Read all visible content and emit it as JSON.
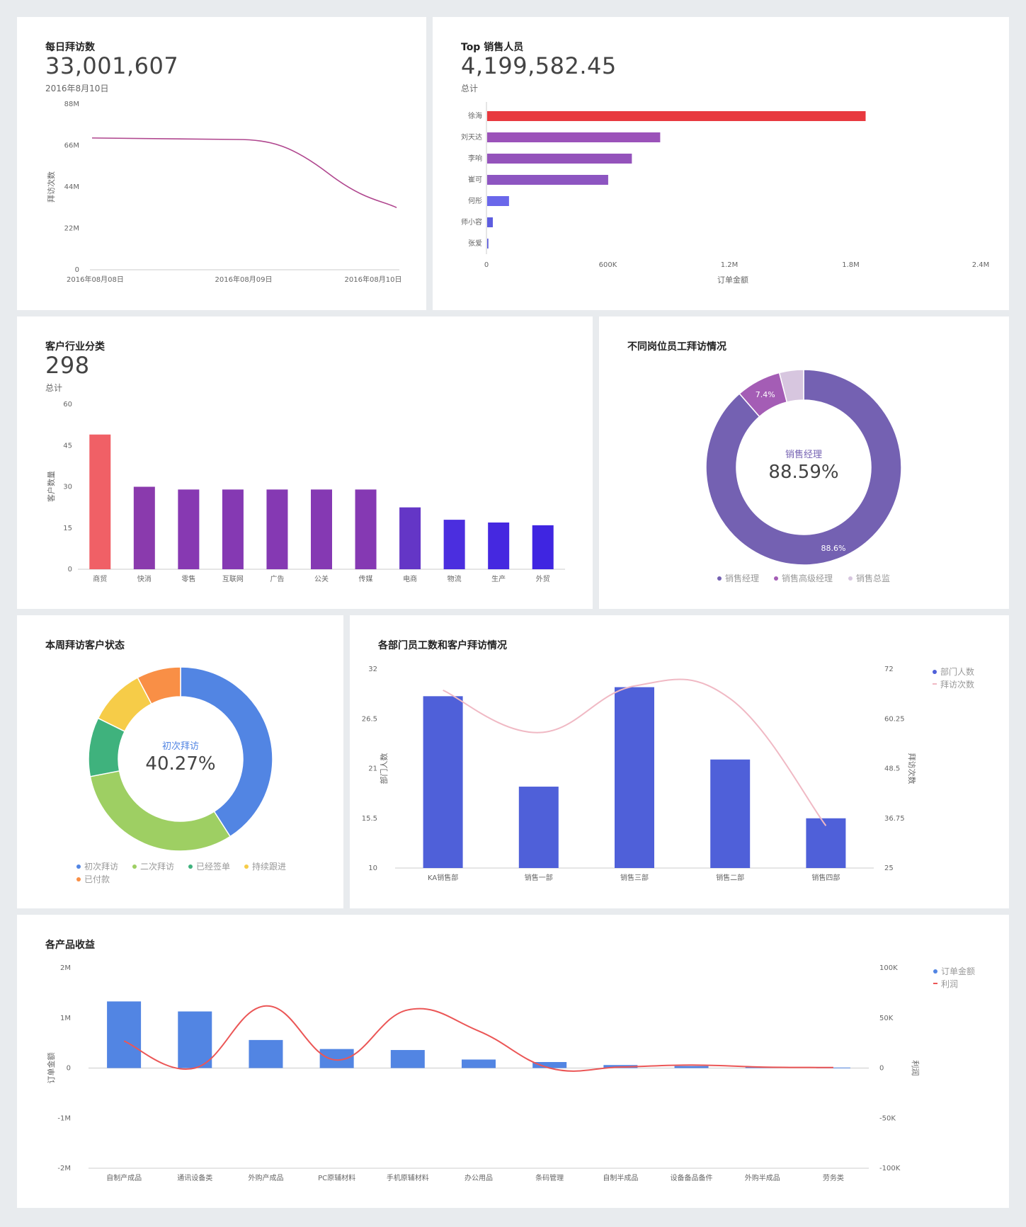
{
  "colors": {
    "page_bg": "#e8ebee",
    "card_bg": "#ffffff",
    "line_visits": "#b0478f",
    "bar_top": "#e8393f",
    "bar_purple": "#9b52b9",
    "bar_blue_purple": "#6a67ea",
    "bar_indigo": "#4f60d9",
    "bar_blue": "#5285e3",
    "line_pink": "#f0b9c4",
    "line_red": "#eb5656"
  },
  "charts": {
    "daily_visits": {
      "title": "每日拜访数",
      "value": "33,001,607",
      "subtitle": "2016年8月10日"
    },
    "top_sales": {
      "title": "Top 销售人员",
      "value": "4,199,582.45",
      "subtitle": "总计"
    },
    "industry": {
      "title": "客户行业分类",
      "value": "298",
      "subtitle": "总计"
    },
    "position": {
      "title": "不同岗位员工拜访情况",
      "center_label": "销售经理",
      "center_value": "88.59%"
    },
    "weekly_status": {
      "title": "本周拜访客户状态",
      "center_label": "初次拜访",
      "center_value": "40.27%"
    },
    "dept": {
      "title": "各部门员工数和客户拜访情况"
    },
    "product": {
      "title": "各产品收益"
    }
  },
  "chart_data": [
    {
      "id": "daily_visits",
      "type": "line",
      "x": [
        "2016年08月08日",
        "2016年08月09日",
        "2016年08月10日"
      ],
      "series": [
        {
          "values": [
            70000000,
            69200000,
            33001607
          ],
          "color": "#b0478f"
        }
      ],
      "ylabel": "拜访次数",
      "ylim": [
        0,
        88000000
      ],
      "yticks": [
        "0",
        "22M",
        "44M",
        "66M",
        "88M"
      ],
      "xticks": [
        "2016年08月08日",
        "2016年08月09日",
        "2016年08月10日"
      ],
      "grid": false
    },
    {
      "id": "top_sales",
      "type": "bar",
      "orientation": "horizontal",
      "categories": [
        "徐海",
        "刘天达",
        "李响",
        "崔可",
        "何彤",
        "师小容",
        "张爱"
      ],
      "values": [
        1870000,
        855000,
        715000,
        598000,
        108000,
        28000,
        6000
      ],
      "bar_colors": [
        "#e8393f",
        "#9b52b9",
        "#9453bb",
        "#8d55c1",
        "#6a67ea",
        "#5d5ddf",
        "#5a5add"
      ],
      "xlabel": "订单金额",
      "xlim": [
        0,
        2400000
      ],
      "xticks": [
        "0",
        "600K",
        "1.2M",
        "1.8M",
        "2.4M"
      ]
    },
    {
      "id": "industry",
      "type": "bar",
      "categories": [
        "商贸",
        "快消",
        "零售",
        "互联网",
        "广告",
        "公关",
        "传媒",
        "电商",
        "物流",
        "生产",
        "外贸"
      ],
      "values": [
        49,
        30,
        29,
        29,
        29,
        29,
        29,
        22.5,
        18,
        17,
        16
      ],
      "bar_colors": [
        "#f06066",
        "#8a3aad",
        "#8739b2",
        "#8539b3",
        "#8539b3",
        "#8539b3",
        "#8539b3",
        "#6436c6",
        "#4b2edf",
        "#4528e0",
        "#3f25e1"
      ],
      "ylabel": "客户数量",
      "ylim": [
        0,
        60
      ],
      "yticks": [
        "0",
        "15",
        "30",
        "45",
        "60"
      ]
    },
    {
      "id": "position",
      "type": "pie",
      "donut": true,
      "labels": [
        "销售经理",
        "销售高级经理",
        "销售总监"
      ],
      "values": [
        88.59,
        7.4,
        4.01
      ],
      "colors": [
        "#7461b2",
        "#a45db5",
        "#d7c6df"
      ],
      "slice_labels": [
        "88.6%",
        "7.4%",
        ""
      ],
      "legend": "bottom"
    },
    {
      "id": "weekly_status",
      "type": "pie",
      "donut": true,
      "labels": [
        "初次拜访",
        "二次拜访",
        "已经签单",
        "持续跟进",
        "已付款"
      ],
      "values": [
        40.27,
        30.5,
        10.2,
        9.8,
        7.6
      ],
      "colors": [
        "#5285e3",
        "#9ecf63",
        "#3fb27d",
        "#f6cc48",
        "#f98f46"
      ],
      "legend": "bottom"
    },
    {
      "id": "dept",
      "type": "bar",
      "categories": [
        "KA销售部",
        "销售一部",
        "销售三部",
        "销售二部",
        "销售四部"
      ],
      "series": [
        {
          "name": "部门人数",
          "type": "bar",
          "values": [
            29,
            19,
            30,
            22,
            15.5
          ],
          "color": "#4f60d9",
          "axis": "left"
        },
        {
          "name": "拜访次数",
          "type": "line",
          "values": [
            67,
            57,
            68,
            65,
            35
          ],
          "color": "#f0b9c4",
          "axis": "right"
        }
      ],
      "ylabel": "部门人数",
      "ylim": [
        10,
        32
      ],
      "yticks": [
        "10",
        "15.5",
        "21",
        "26.5",
        "32"
      ],
      "y2label": "拜访次数",
      "y2lim": [
        25,
        72
      ],
      "y2ticks": [
        "25",
        "36.75",
        "48.5",
        "60.25",
        "72"
      ],
      "legend": "top-right"
    },
    {
      "id": "product",
      "type": "bar",
      "categories": [
        "自制产成品",
        "通讯设备类",
        "外购产成品",
        "PC原辅材料",
        "手机原辅材料",
        "办公用品",
        "条码管理",
        "自制半成品",
        "设备备品备件",
        "外购半成品",
        "劳务类"
      ],
      "series": [
        {
          "name": "订单金额",
          "type": "bar",
          "values": [
            1330000,
            1130000,
            560000,
            380000,
            360000,
            170000,
            120000,
            60000,
            40000,
            20000,
            10000
          ],
          "color": "#5285e3",
          "axis": "left"
        },
        {
          "name": "利润",
          "type": "line",
          "values": [
            27000,
            0,
            62000,
            8000,
            58000,
            37000,
            0,
            1000,
            3000,
            1000,
            500
          ],
          "color": "#eb5656",
          "axis": "right"
        }
      ],
      "ylabel": "订单金额",
      "ylim": [
        -2000000,
        2000000
      ],
      "yticks": [
        "-2M",
        "-1M",
        "0",
        "1M",
        "2M"
      ],
      "y2label": "利润",
      "y2lim": [
        -100000,
        100000
      ],
      "y2ticks": [
        "-100K",
        "-50K",
        "0",
        "50K",
        "100K"
      ],
      "legend": "top-right"
    }
  ]
}
